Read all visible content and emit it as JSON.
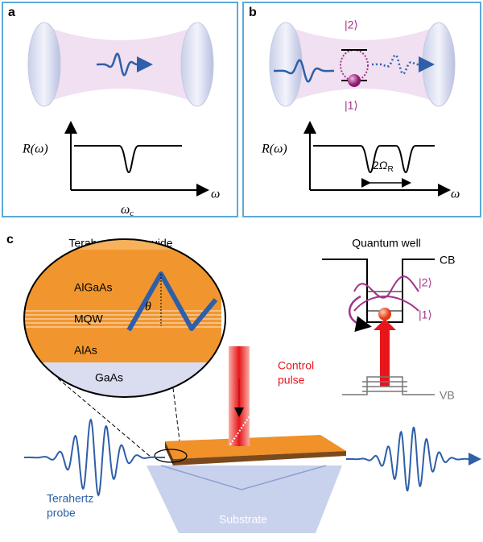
{
  "panel_a": {
    "label": "a",
    "y_axis_label": "R(ω)",
    "x_axis_label": "ω",
    "resonance_label": {
      "base": "ω",
      "subscript": "c"
    }
  },
  "panel_b": {
    "label": "b",
    "y_axis_label": "R(ω)",
    "x_axis_label": "ω",
    "state_upper": "|2⟩",
    "state_lower": "|1⟩",
    "splitting_label": {
      "prefix": "2",
      "base": "Ω",
      "subscript": "R"
    }
  },
  "panel_c": {
    "label": "c",
    "waveguide_title": "Terahertz waveguide",
    "layers": [
      "AlGaAs",
      "MQW",
      "AlAs",
      "GaAs"
    ],
    "angle_label": "θ",
    "control_label": [
      "Control",
      "pulse"
    ],
    "probe_label": [
      "Terahertz",
      "probe"
    ],
    "substrate_label": "Substrate",
    "quantum_well": {
      "title": "Quantum well",
      "conduction_band": "CB",
      "valence_band": "VB",
      "state_upper": "|2⟩",
      "state_lower": "|1⟩"
    }
  }
}
